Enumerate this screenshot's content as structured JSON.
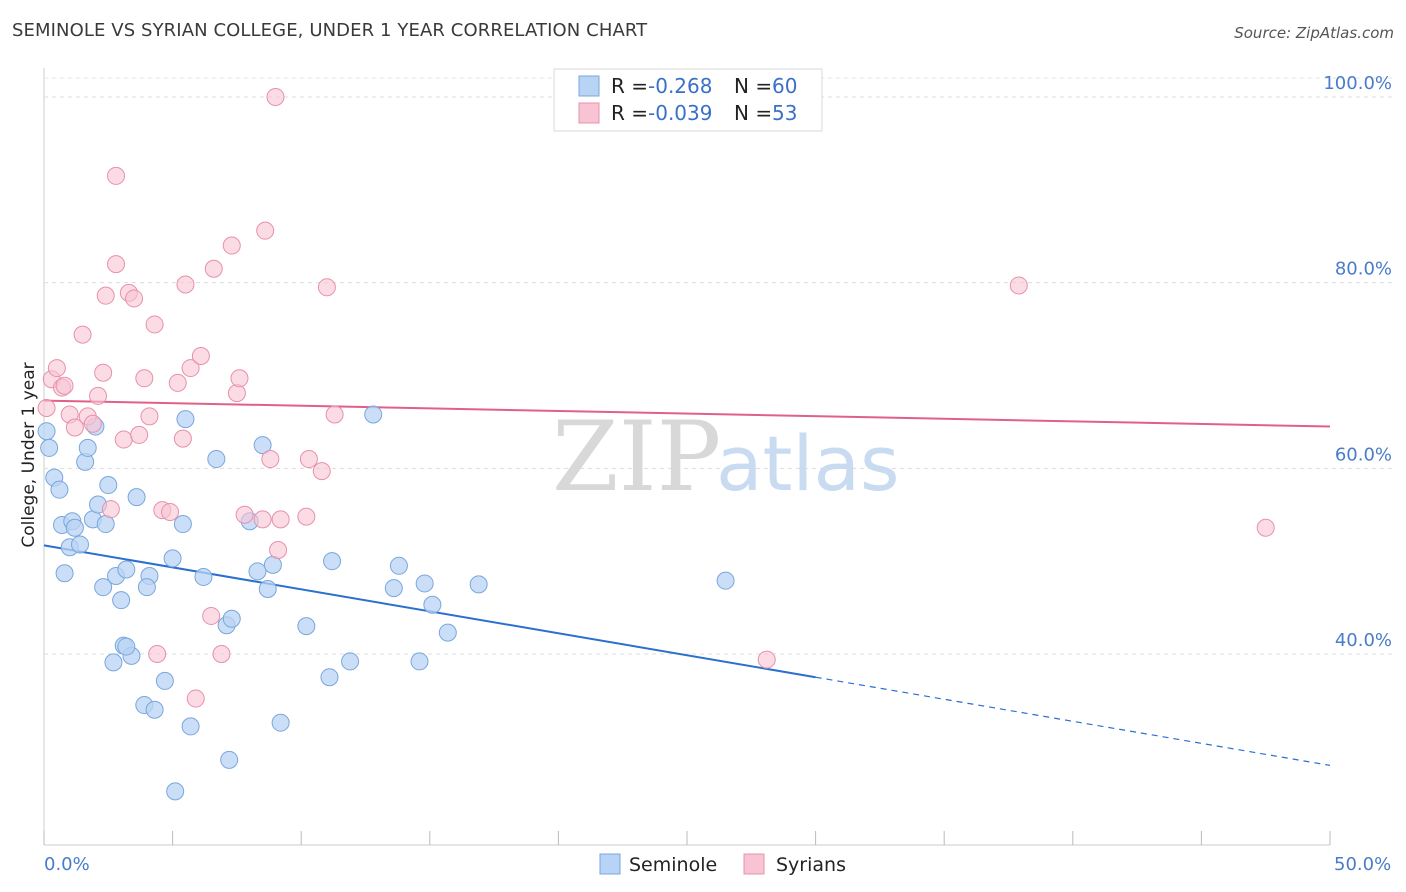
{
  "header": {
    "title": "SEMINOLE VS SYRIAN COLLEGE, UNDER 1 YEAR CORRELATION CHART",
    "source": "Source: ZipAtlas.com"
  },
  "watermark": {
    "zip": "ZIP",
    "atlas": "atlas"
  },
  "colors": {
    "seminole_fill": "#b8d4f4",
    "seminole_stroke": "#7aa6dc",
    "seminole_line": "#2b6fcf",
    "syrian_fill": "#f8c4d4",
    "syrian_stroke": "#e890ac",
    "syrian_line": "#e0608a",
    "grid": "#dcdcdc"
  },
  "legend": {
    "rows": [
      {
        "r_label": "R =",
        "r_value": "-0.268",
        "n_label": "N =",
        "n_value": "60"
      },
      {
        "r_label": "R =",
        "r_value": "-0.039",
        "n_label": "N =",
        "n_value": "53"
      }
    ]
  },
  "bottom_legend": {
    "items": [
      "Seminole",
      "Syrians"
    ]
  },
  "chart_data": {
    "type": "scatter",
    "title": "SEMINOLE VS SYRIAN COLLEGE, UNDER 1 YEAR CORRELATION CHART",
    "xlabel": "",
    "ylabel": "College, Under 1 year",
    "xlim": [
      0,
      50
    ],
    "ylim": [
      22,
      102
    ],
    "x_tick_labels": [
      "0.0%",
      "50.0%"
    ],
    "y_ticks": [
      40,
      60,
      80,
      100
    ],
    "y_tick_labels": [
      "40.0%",
      "60.0%",
      "80.0%",
      "100.0%"
    ],
    "grid": true,
    "legend_position": "top-center",
    "series": [
      {
        "name": "Seminole",
        "r": -0.268,
        "n": 60,
        "trend": {
          "x0": 0,
          "y0": 51.7,
          "x1": 30,
          "y1": 37.5,
          "dashed_to_x": 50,
          "dashed_to_y": 28.0
        },
        "points": [
          [
            0.1,
            64.0
          ],
          [
            0.2,
            62.2
          ],
          [
            0.4,
            59.0
          ],
          [
            0.6,
            57.7
          ],
          [
            0.7,
            53.9
          ],
          [
            0.8,
            48.7
          ],
          [
            1.0,
            51.5
          ],
          [
            1.1,
            54.3
          ],
          [
            1.2,
            53.6
          ],
          [
            1.4,
            51.8
          ],
          [
            1.6,
            60.7
          ],
          [
            1.7,
            62.2
          ],
          [
            1.9,
            54.5
          ],
          [
            2.0,
            64.5
          ],
          [
            2.1,
            56.1
          ],
          [
            2.3,
            47.2
          ],
          [
            2.4,
            54.0
          ],
          [
            2.5,
            58.2
          ],
          [
            2.7,
            39.1
          ],
          [
            2.8,
            48.4
          ],
          [
            3.0,
            45.8
          ],
          [
            3.1,
            40.9
          ],
          [
            3.2,
            49.1
          ],
          [
            3.4,
            39.8
          ],
          [
            3.6,
            56.9
          ],
          [
            3.9,
            34.5
          ],
          [
            4.1,
            48.4
          ],
          [
            4.3,
            34.0
          ],
          [
            4.7,
            37.1
          ],
          [
            5.0,
            50.3
          ],
          [
            5.1,
            25.2
          ],
          [
            5.4,
            54.0
          ],
          [
            5.5,
            65.3
          ],
          [
            5.7,
            32.2
          ],
          [
            6.2,
            48.3
          ],
          [
            6.7,
            61.0
          ],
          [
            7.1,
            43.1
          ],
          [
            7.2,
            28.6
          ],
          [
            7.3,
            43.8
          ],
          [
            8.0,
            54.3
          ],
          [
            8.3,
            48.9
          ],
          [
            8.5,
            62.5
          ],
          [
            8.7,
            47.0
          ],
          [
            8.9,
            49.6
          ],
          [
            9.2,
            32.6
          ],
          [
            10.2,
            43.0
          ],
          [
            11.1,
            37.5
          ],
          [
            11.2,
            50.0
          ],
          [
            11.9,
            39.2
          ],
          [
            12.8,
            65.8
          ],
          [
            13.6,
            47.1
          ],
          [
            13.8,
            49.5
          ],
          [
            14.6,
            39.2
          ],
          [
            14.8,
            47.6
          ],
          [
            15.1,
            45.3
          ],
          [
            15.7,
            42.3
          ],
          [
            16.9,
            47.5
          ],
          [
            26.5,
            47.9
          ],
          [
            4.0,
            47.2
          ],
          [
            3.2,
            40.8
          ]
        ]
      },
      {
        "name": "Syrians",
        "r": -0.039,
        "n": 53,
        "trend": {
          "x0": 0,
          "y0": 67.3,
          "x1": 50,
          "y1": 64.5
        },
        "points": [
          [
            0.1,
            66.5
          ],
          [
            0.3,
            69.6
          ],
          [
            0.5,
            70.8
          ],
          [
            0.7,
            68.7
          ],
          [
            0.8,
            68.9
          ],
          [
            1.0,
            65.8
          ],
          [
            1.2,
            64.4
          ],
          [
            1.5,
            74.4
          ],
          [
            1.7,
            65.6
          ],
          [
            1.9,
            64.8
          ],
          [
            2.1,
            67.8
          ],
          [
            2.3,
            70.3
          ],
          [
            2.4,
            78.6
          ],
          [
            2.6,
            55.6
          ],
          [
            2.8,
            82.0
          ],
          [
            3.1,
            63.1
          ],
          [
            3.3,
            78.9
          ],
          [
            3.5,
            78.3
          ],
          [
            3.7,
            63.6
          ],
          [
            3.9,
            69.7
          ],
          [
            4.1,
            65.6
          ],
          [
            4.3,
            75.5
          ],
          [
            4.4,
            40.0
          ],
          [
            4.6,
            55.5
          ],
          [
            4.9,
            55.3
          ],
          [
            5.2,
            69.2
          ],
          [
            5.4,
            63.2
          ],
          [
            5.5,
            79.8
          ],
          [
            5.7,
            70.8
          ],
          [
            5.9,
            35.2
          ],
          [
            6.1,
            72.1
          ],
          [
            6.5,
            44.1
          ],
          [
            6.6,
            81.5
          ],
          [
            6.9,
            40.0
          ],
          [
            7.3,
            84.0
          ],
          [
            7.5,
            68.1
          ],
          [
            7.6,
            69.7
          ],
          [
            7.8,
            55.0
          ],
          [
            8.5,
            54.5
          ],
          [
            8.6,
            85.6
          ],
          [
            8.8,
            61.0
          ],
          [
            9.1,
            51.2
          ],
          [
            9.2,
            54.5
          ],
          [
            9.0,
            100.0
          ],
          [
            10.2,
            54.8
          ],
          [
            10.3,
            61.0
          ],
          [
            10.8,
            59.7
          ],
          [
            11.0,
            79.5
          ],
          [
            11.3,
            65.8
          ],
          [
            2.8,
            91.5
          ],
          [
            37.9,
            79.7
          ],
          [
            47.5,
            53.6
          ],
          [
            28.1,
            39.4
          ]
        ]
      }
    ]
  }
}
